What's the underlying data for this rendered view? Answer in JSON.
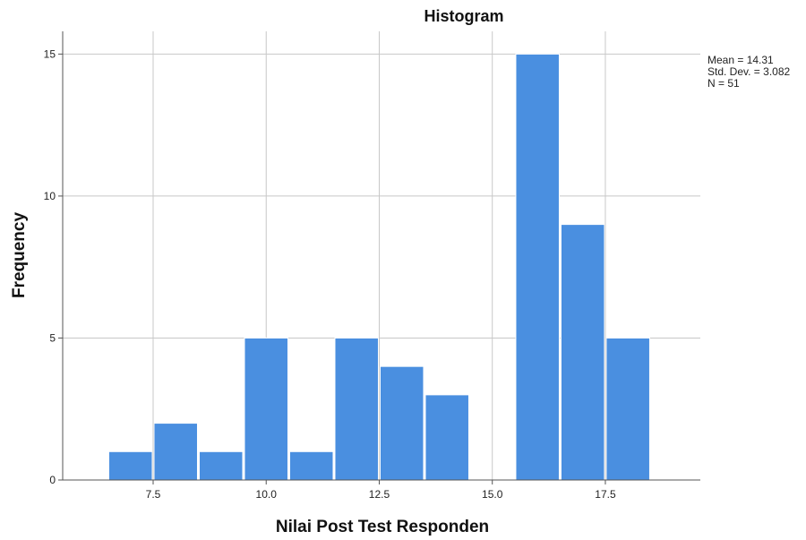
{
  "chart_data": {
    "type": "bar",
    "title": "Histogram",
    "xlabel": "Nilai Post Test Responden",
    "ylabel": "Frequency",
    "bin_width": 1,
    "bins": [
      {
        "start": 6.5,
        "end": 7.5,
        "count": 1
      },
      {
        "start": 7.5,
        "end": 8.5,
        "count": 2
      },
      {
        "start": 8.5,
        "end": 9.5,
        "count": 1
      },
      {
        "start": 9.5,
        "end": 10.5,
        "count": 5
      },
      {
        "start": 10.5,
        "end": 11.5,
        "count": 1
      },
      {
        "start": 11.5,
        "end": 12.5,
        "count": 5
      },
      {
        "start": 12.5,
        "end": 13.5,
        "count": 4
      },
      {
        "start": 13.5,
        "end": 14.5,
        "count": 3
      },
      {
        "start": 15.5,
        "end": 16.5,
        "count": 15
      },
      {
        "start": 16.5,
        "end": 17.5,
        "count": 9
      },
      {
        "start": 17.5,
        "end": 18.5,
        "count": 5
      }
    ],
    "x_ticks": [
      "7.5",
      "10.0",
      "12.5",
      "15.0",
      "17.5"
    ],
    "y_ticks": [
      "0",
      "5",
      "10",
      "15"
    ],
    "xlim": [
      5.5,
      19.6
    ],
    "ylim": [
      0,
      15.8
    ],
    "grid": true,
    "bar_color": "#4a8fe0",
    "stats": [
      "Mean = 14.31",
      "Std. Dev. = 3.082",
      "N = 51"
    ]
  }
}
